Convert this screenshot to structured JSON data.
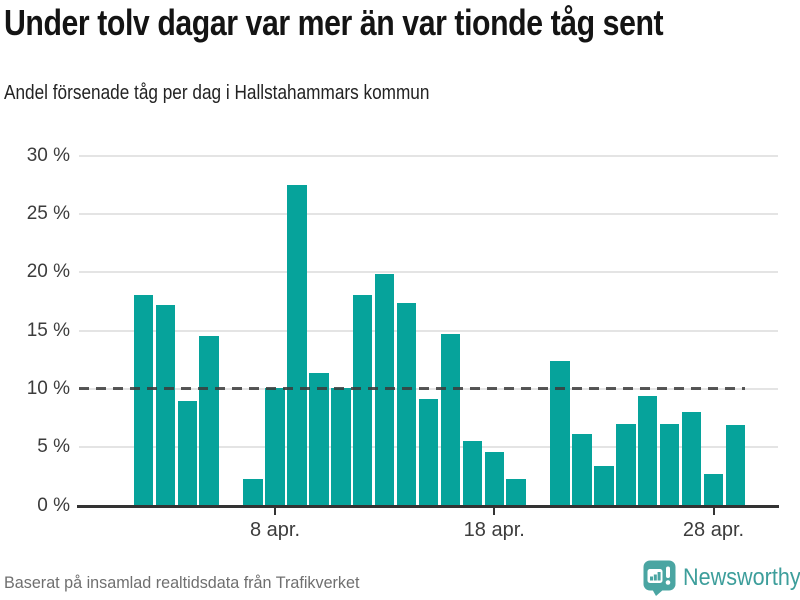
{
  "header": {
    "title": "Under tolv dagar var mer än var tionde tåg sent",
    "subtitle": "Andel försenade tåg per dag i Hallstahammars kommun"
  },
  "footer": {
    "source": "Baserat på insamlad realtidsdata från Trafikverket",
    "brand": "Newsworthy"
  },
  "colors": {
    "bar": "#06a39b",
    "axis": "#333333",
    "grid": "#e4e4e4",
    "reference_line": "#4a4a4a",
    "brand_teal": "#3d9e9b",
    "logo_bubble": "#4aa5a2",
    "title_text": "#141414",
    "muted_text": "#6f6f6f"
  },
  "chart_data": {
    "type": "bar",
    "title": "Under tolv dagar var mer än var tionde tåg sent",
    "subtitle": "Andel försenade tåg per dag i Hallstahammars kommun",
    "xlabel": "",
    "ylabel": "",
    "ylim": [
      0,
      30
    ],
    "grid": true,
    "reference_line_pct": 10,
    "y_tick_values": [
      0,
      5,
      10,
      15,
      20,
      25,
      30
    ],
    "y_tick_labels": [
      "0 %",
      "5 %",
      "10 %",
      "15 %",
      "20 %",
      "25 %",
      "30 %"
    ],
    "x_tick_labels": [
      {
        "day": 8,
        "label": "8 apr."
      },
      {
        "day": 18,
        "label": "18 apr."
      },
      {
        "day": 28,
        "label": "28 apr."
      }
    ],
    "x_unit": "day of April",
    "missing_days": [
      6,
      20
    ],
    "points": [
      {
        "day": 2,
        "value": 18.1
      },
      {
        "day": 3,
        "value": 17.2
      },
      {
        "day": 4,
        "value": 9.0
      },
      {
        "day": 5,
        "value": 14.5
      },
      {
        "day": 7,
        "value": 2.3
      },
      {
        "day": 8,
        "value": 10.1
      },
      {
        "day": 9,
        "value": 27.5
      },
      {
        "day": 10,
        "value": 11.4
      },
      {
        "day": 11,
        "value": 10.1
      },
      {
        "day": 12,
        "value": 18.1
      },
      {
        "day": 13,
        "value": 19.9
      },
      {
        "day": 14,
        "value": 17.4
      },
      {
        "day": 15,
        "value": 9.1
      },
      {
        "day": 16,
        "value": 14.7
      },
      {
        "day": 17,
        "value": 5.5
      },
      {
        "day": 18,
        "value": 4.6
      },
      {
        "day": 19,
        "value": 2.3
      },
      {
        "day": 21,
        "value": 12.4
      },
      {
        "day": 22,
        "value": 6.1
      },
      {
        "day": 23,
        "value": 3.4
      },
      {
        "day": 24,
        "value": 7.0
      },
      {
        "day": 25,
        "value": 9.4
      },
      {
        "day": 26,
        "value": 7.0
      },
      {
        "day": 27,
        "value": 8.0
      },
      {
        "day": 28,
        "value": 2.7
      },
      {
        "day": 29,
        "value": 6.9
      }
    ]
  }
}
